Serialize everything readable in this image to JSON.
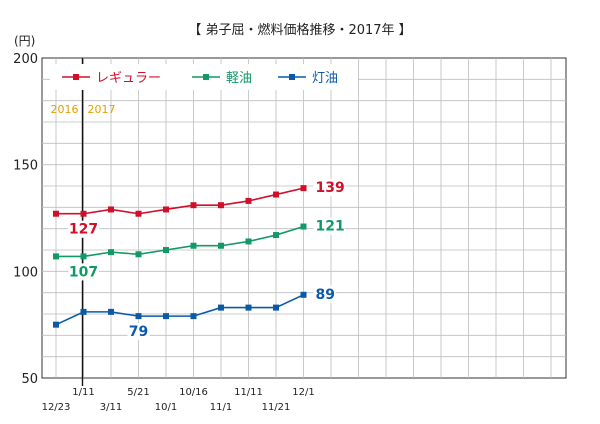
{
  "chart_data": {
    "type": "line",
    "title": "【 弟子屈・燃料価格推移・2017年 】",
    "y_unit": "(円)",
    "ylim": [
      50,
      200
    ],
    "yticks": [
      50,
      100,
      150,
      200
    ],
    "grid": true,
    "legend_placement": "top-left",
    "x_count": 19,
    "categories": [
      "12/23",
      "1/11",
      "3/11",
      "5/21",
      "10/1",
      "10/16",
      "11/1",
      "11/11",
      "11/21",
      "12/1"
    ],
    "x_labels": [
      {
        "index": 0,
        "label": "12/23",
        "row": "lower"
      },
      {
        "index": 1,
        "label": "1/11",
        "row": "upper"
      },
      {
        "index": 2,
        "label": "3/11",
        "row": "lower"
      },
      {
        "index": 3,
        "label": "5/21",
        "row": "upper"
      },
      {
        "index": 4,
        "label": "10/1",
        "row": "lower"
      },
      {
        "index": 5,
        "label": "10/16",
        "row": "upper"
      },
      {
        "index": 6,
        "label": "11/1",
        "row": "lower"
      },
      {
        "index": 7,
        "label": "11/11",
        "row": "upper"
      },
      {
        "index": 8,
        "label": "11/21",
        "row": "lower"
      },
      {
        "index": 9,
        "label": "12/1",
        "row": "upper"
      }
    ],
    "year_divider": {
      "after_index": 1,
      "left_label": "2016",
      "right_label": "2017",
      "color": "#e0a000"
    },
    "series": [
      {
        "name": "レギュラー",
        "color": "#d0102a",
        "values": [
          127,
          127,
          129,
          127,
          129,
          131,
          131,
          133,
          136,
          139
        ],
        "annotations": [
          {
            "index": 1,
            "text": "127",
            "pos": "below"
          },
          {
            "index": 9,
            "text": "139",
            "pos": "right"
          }
        ]
      },
      {
        "name": "軽油",
        "color": "#119966",
        "values": [
          107,
          107,
          109,
          108,
          110,
          112,
          112,
          114,
          117,
          121
        ],
        "annotations": [
          {
            "index": 1,
            "text": "107",
            "pos": "below"
          },
          {
            "index": 9,
            "text": "121",
            "pos": "right"
          }
        ]
      },
      {
        "name": "灯油",
        "color": "#0a5aa8",
        "values": [
          75,
          81,
          81,
          79,
          79,
          79,
          83,
          83,
          83,
          89
        ],
        "annotations": [
          {
            "index": 3,
            "text": "79",
            "pos": "below"
          },
          {
            "index": 9,
            "text": "89",
            "pos": "right"
          }
        ]
      }
    ]
  }
}
